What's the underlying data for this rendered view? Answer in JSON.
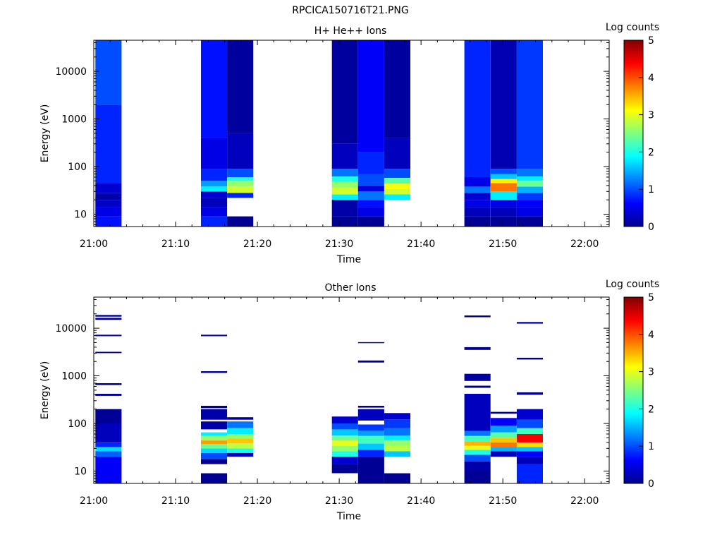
{
  "file_title": "RPCICA150716T21.PNG",
  "chart_data": [
    {
      "type": "heatmap",
      "title": "H+ He++ Ions",
      "xlabel": "Time",
      "ylabel": "Energy (eV)",
      "x_ticks": [
        "21:00",
        "21:10",
        "21:20",
        "21:30",
        "21:40",
        "21:50",
        "22:00"
      ],
      "xlim": [
        "21:00",
        "22:03"
      ],
      "y_scale": "log",
      "y_ticks": [
        "10",
        "100",
        "1000",
        "10000"
      ],
      "ylim": [
        5.5,
        45000
      ],
      "colorbar": {
        "label": "Log counts",
        "ticks": [
          "0",
          "1",
          "2",
          "3",
          "4",
          "5"
        ],
        "range": [
          0,
          5
        ],
        "colormap": "jet"
      },
      "data_blocks": [
        {
          "t0": "21:00.2",
          "t1": "21:03.4",
          "bands": [
            [
              5.5,
              9,
              0.7
            ],
            [
              9,
              14,
              0.5
            ],
            [
              14,
              20,
              0.35
            ],
            [
              20,
              28,
              0.2
            ],
            [
              28,
              45,
              0.4
            ],
            [
              45,
              2000,
              0.8
            ],
            [
              2000,
              45000,
              1.0
            ]
          ]
        },
        {
          "t0": "21:13.1",
          "t1": "21:16.3",
          "bands": [
            [
              5.5,
              9,
              0.8
            ],
            [
              9,
              14,
              0.5
            ],
            [
              14,
              22,
              0.3
            ],
            [
              22,
              30,
              0.4
            ],
            [
              30,
              38,
              1.8
            ],
            [
              38,
              50,
              1.4
            ],
            [
              50,
              90,
              0.8
            ],
            [
              90,
              400,
              0.5
            ],
            [
              400,
              45000,
              0.7
            ]
          ]
        },
        {
          "t0": "21:16.3",
          "t1": "21:19.5",
          "bands": [
            [
              5.5,
              9,
              0.1
            ],
            [
              22,
              28,
              0.8
            ],
            [
              28,
              38,
              2.9
            ],
            [
              38,
              50,
              2.6
            ],
            [
              50,
              60,
              2.0
            ],
            [
              60,
              90,
              1.0
            ],
            [
              90,
              500,
              0.3
            ],
            [
              500,
              45000,
              0.15
            ]
          ]
        },
        {
          "t0": "21:29.1",
          "t1": "21:32.3",
          "bands": [
            [
              5.5,
              9,
              0.1
            ],
            [
              9,
              20,
              0.2
            ],
            [
              20,
              26,
              1.8
            ],
            [
              26,
              36,
              2.9
            ],
            [
              36,
              48,
              2.6
            ],
            [
              48,
              62,
              2.0
            ],
            [
              62,
              90,
              1.2
            ],
            [
              90,
              300,
              0.3
            ],
            [
              300,
              45000,
              0.15
            ]
          ]
        },
        {
          "t0": "21:32.3",
          "t1": "21:35.5",
          "bands": [
            [
              5.5,
              9,
              0.1
            ],
            [
              9,
              14,
              0.5
            ],
            [
              14,
              20,
              0.7
            ],
            [
              20,
              30,
              1.2
            ],
            [
              30,
              40,
              0.5
            ],
            [
              40,
              70,
              1.0
            ],
            [
              70,
              200,
              0.8
            ],
            [
              200,
              45000,
              0.6
            ]
          ]
        },
        {
          "t0": "21:35.5",
          "t1": "21:38.7",
          "bands": [
            [
              20,
              26,
              1.8
            ],
            [
              26,
              34,
              2.9
            ],
            [
              34,
              44,
              3.1
            ],
            [
              44,
              58,
              2.3
            ],
            [
              58,
              90,
              1.0
            ],
            [
              90,
              400,
              0.3
            ],
            [
              400,
              45000,
              0.15
            ]
          ]
        },
        {
          "t0": "21:45.3",
          "t1": "21:48.5",
          "bands": [
            [
              5.5,
              9,
              0.1
            ],
            [
              9,
              14,
              0.3
            ],
            [
              14,
              20,
              0.5
            ],
            [
              20,
              28,
              0.4
            ],
            [
              28,
              38,
              1.2
            ],
            [
              38,
              60,
              0.5
            ],
            [
              60,
              45000,
              0.8
            ]
          ]
        },
        {
          "t0": "21:48.5",
          "t1": "21:51.7",
          "bands": [
            [
              5.5,
              9,
              0.1
            ],
            [
              9,
              14,
              0.3
            ],
            [
              14,
              20,
              0.5
            ],
            [
              20,
              30,
              1.8
            ],
            [
              30,
              45,
              3.8
            ],
            [
              45,
              55,
              3.2
            ],
            [
              55,
              70,
              1.6
            ],
            [
              70,
              90,
              1.0
            ],
            [
              90,
              45000,
              0.25
            ]
          ]
        },
        {
          "t0": "21:51.7",
          "t1": "21:54.9",
          "bands": [
            [
              5.5,
              9,
              0.1
            ],
            [
              9,
              14,
              0.5
            ],
            [
              14,
              20,
              0.6
            ],
            [
              20,
              28,
              0.9
            ],
            [
              28,
              38,
              1.5
            ],
            [
              38,
              50,
              2.4
            ],
            [
              50,
              62,
              1.8
            ],
            [
              62,
              90,
              1.2
            ],
            [
              90,
              45000,
              0.9
            ]
          ]
        }
      ]
    },
    {
      "type": "heatmap",
      "title": "Other Ions",
      "xlabel": "Time",
      "ylabel": "Energy (eV)",
      "x_ticks": [
        "21:00",
        "21:10",
        "21:20",
        "21:30",
        "21:40",
        "21:50",
        "22:00"
      ],
      "xlim": [
        "21:00",
        "22:03"
      ],
      "y_scale": "log",
      "y_ticks": [
        "10",
        "100",
        "1000",
        "10000"
      ],
      "ylim": [
        5.5,
        45000
      ],
      "colorbar": {
        "label": "Log counts",
        "ticks": [
          "0",
          "1",
          "2",
          "3",
          "4",
          "5"
        ],
        "range": [
          0,
          5
        ],
        "colormap": "jet"
      },
      "data_blocks": [
        {
          "t0": "21:00.2",
          "t1": "21:03.4",
          "bands": [
            [
              5.5,
              20,
              0.6
            ],
            [
              20,
              26,
              1.1
            ],
            [
              26,
              32,
              1.7
            ],
            [
              32,
              40,
              0.8
            ],
            [
              40,
              100,
              0.3
            ],
            [
              100,
              200,
              0.1
            ],
            [
              380,
              420,
              0.1
            ],
            [
              640,
              700,
              0.1
            ],
            [
              3000,
              3200,
              0.1
            ],
            [
              6800,
              7300,
              0.1
            ],
            [
              15000,
              16500,
              0.1
            ],
            [
              17500,
              19000,
              0.1
            ]
          ]
        },
        {
          "t0": "21:13.1",
          "t1": "21:16.3",
          "bands": [
            [
              5.5,
              9,
              0.1
            ],
            [
              14,
              18,
              0.1
            ],
            [
              18,
              24,
              1.0
            ],
            [
              24,
              30,
              1.7
            ],
            [
              30,
              37,
              2.4
            ],
            [
              37,
              44,
              3.6
            ],
            [
              44,
              55,
              2.6
            ],
            [
              55,
              65,
              1.8
            ],
            [
              75,
              110,
              0.2
            ],
            [
              120,
              200,
              0.2
            ],
            [
              210,
              235,
              0.1
            ],
            [
              1150,
              1250,
              0.1
            ],
            [
              6800,
              7300,
              0.1
            ]
          ]
        },
        {
          "t0": "21:16.3",
          "t1": "21:19.5",
          "bands": [
            [
              20,
              24,
              0.3
            ],
            [
              24,
              30,
              2.0
            ],
            [
              30,
              38,
              2.8
            ],
            [
              38,
              48,
              3.4
            ],
            [
              48,
              60,
              2.6
            ],
            [
              60,
              80,
              1.8
            ],
            [
              80,
              110,
              1.2
            ],
            [
              120,
              135,
              0.1
            ]
          ]
        },
        {
          "t0": "21:29.1",
          "t1": "21:32.3",
          "bands": [
            [
              9,
              14,
              0.1
            ],
            [
              14,
              20,
              0.4
            ],
            [
              20,
              26,
              2.0
            ],
            [
              26,
              34,
              2.6
            ],
            [
              34,
              44,
              3.0
            ],
            [
              44,
              56,
              2.4
            ],
            [
              56,
              75,
              1.6
            ],
            [
              75,
              100,
              1.0
            ],
            [
              100,
              140,
              0.4
            ]
          ]
        },
        {
          "t0": "21:32.3",
          "t1": "21:35.5",
          "bands": [
            [
              5.5,
              20,
              0.1
            ],
            [
              20,
              28,
              0.8
            ],
            [
              28,
              38,
              1.6
            ],
            [
              38,
              55,
              2.2
            ],
            [
              55,
              70,
              1.4
            ],
            [
              70,
              95,
              0.9
            ],
            [
              115,
              200,
              0.3
            ],
            [
              215,
              235,
              0.1
            ],
            [
              1900,
              2100,
              0.1
            ],
            [
              4900,
              5100,
              0.1
            ]
          ]
        },
        {
          "t0": "21:35.5",
          "t1": "21:38.7",
          "bands": [
            [
              5.5,
              9,
              0.1
            ],
            [
              20,
              26,
              1.6
            ],
            [
              26,
              34,
              2.8
            ],
            [
              34,
              44,
              2.6
            ],
            [
              44,
              56,
              1.8
            ],
            [
              56,
              80,
              1.2
            ],
            [
              80,
              120,
              0.9
            ],
            [
              120,
              165,
              0.4
            ]
          ]
        },
        {
          "t0": "21:45.3",
          "t1": "21:48.5",
          "bands": [
            [
              5.5,
              10,
              0.1
            ],
            [
              10,
              16,
              0.2
            ],
            [
              16,
              22,
              1.0
            ],
            [
              22,
              28,
              2.0
            ],
            [
              28,
              34,
              3.0
            ],
            [
              34,
              42,
              3.5
            ],
            [
              42,
              55,
              2.2
            ],
            [
              55,
              70,
              1.2
            ],
            [
              70,
              420,
              0.3
            ],
            [
              560,
              620,
              0.1
            ],
            [
              780,
              1100,
              0.15
            ],
            [
              3500,
              4000,
              0.1
            ],
            [
              17000,
              18500,
              0.1
            ]
          ]
        },
        {
          "t0": "21:48.5",
          "t1": "21:51.7",
          "bands": [
            [
              20,
              26,
              0.3
            ],
            [
              26,
              32,
              1.5
            ],
            [
              32,
              40,
              3.8
            ],
            [
              40,
              50,
              3.4
            ],
            [
              50,
              65,
              2.3
            ],
            [
              65,
              90,
              1.4
            ],
            [
              90,
              130,
              0.6
            ],
            [
              160,
              175,
              0.1
            ]
          ]
        },
        {
          "t0": "21:51.7",
          "t1": "21:54.9",
          "bands": [
            [
              5.5,
              14,
              0.8
            ],
            [
              14,
              20,
              0.3
            ],
            [
              20,
              26,
              0.6
            ],
            [
              26,
              32,
              1.6
            ],
            [
              32,
              40,
              3.3
            ],
            [
              40,
              60,
              4.4
            ],
            [
              60,
              80,
              2.2
            ],
            [
              80,
              120,
              1.0
            ],
            [
              120,
              200,
              0.4
            ],
            [
              400,
              450,
              0.1
            ],
            [
              2200,
              2400,
              0.1
            ],
            [
              12500,
              13500,
              0.1
            ]
          ]
        }
      ]
    }
  ]
}
